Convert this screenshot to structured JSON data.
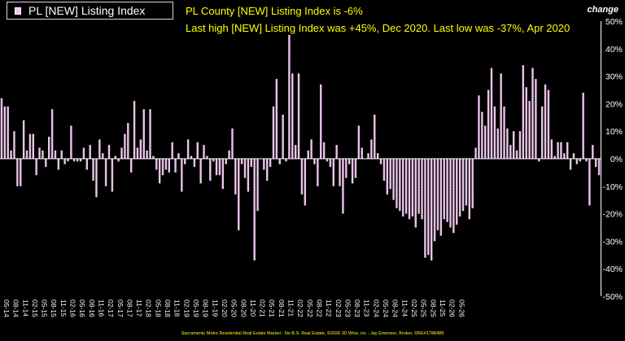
{
  "chart_data": {
    "type": "bar",
    "ylabel": "change",
    "ylim": [
      -50,
      50
    ],
    "ytick_labels": [
      "50%",
      "40%",
      "30%",
      "20%",
      "10%",
      "0%",
      "-10%",
      "-20%",
      "-30%",
      "-40%",
      "-50%"
    ],
    "legend": "PL [NEW] Listing Index",
    "legend_position": "top-left",
    "grid": false,
    "headlines": [
      "PL County [NEW] Listing Index is -6%",
      "Last high [NEW] Listing Index was +45%, Dec 2020. Last low was -37%, Apr 2020"
    ],
    "footer": "Sacramento Metro Residential Real Estate Market - No B.S. Real Estate, ©2026 JD Wise, inc - Jay Emerson, Broker, DRE#1788488",
    "x_tick_labels": [
      "05-14",
      "08-14",
      "11-14",
      "02-15",
      "05-15",
      "08-15",
      "11-15",
      "02-16",
      "05-16",
      "08-16",
      "11-16",
      "02-17",
      "05-17",
      "08-17",
      "11-17",
      "02-18",
      "05-18",
      "08-18",
      "11-18",
      "02-19",
      "05-19",
      "08-19",
      "11-19",
      "02-20",
      "05-20",
      "08-20",
      "11-20",
      "02-21",
      "05-21",
      "08-21",
      "11-21",
      "02-22",
      "05-22",
      "08-22",
      "11-22",
      "02-23",
      "05-23",
      "08-23",
      "11-23",
      "02-24",
      "05-24",
      "08-24",
      "11-24",
      "02-25",
      "05-25",
      "08-25",
      "11-25",
      "02-26",
      "05-26"
    ],
    "start_month": "05-14",
    "values": [
      22,
      19,
      19,
      3,
      10,
      -10,
      -10,
      14,
      3,
      9,
      9,
      -6,
      4,
      3,
      -3,
      8,
      18,
      3,
      -4,
      3,
      -2,
      -1,
      12,
      -1,
      -1,
      -1,
      4,
      -4,
      5,
      -8,
      -14,
      7,
      2,
      -10,
      5,
      -12,
      1,
      -1,
      4,
      9,
      13,
      -5,
      21,
      4,
      7,
      18,
      3,
      18,
      1,
      -4,
      -9,
      -6,
      -4,
      -5,
      6,
      -5,
      2,
      -12,
      -2,
      7,
      1,
      -3,
      6,
      -9,
      5,
      1,
      -8,
      -1,
      -6,
      -6,
      -11,
      -2,
      3,
      11,
      -13,
      -26,
      -2,
      -7,
      -12,
      -3,
      -37,
      -19,
      0,
      -4,
      -8,
      -3,
      19,
      29,
      -2,
      16,
      -1,
      45,
      31,
      5,
      31,
      -13,
      -17,
      3,
      7,
      -2,
      -10,
      27,
      6,
      -1,
      -3,
      -10,
      5,
      -10,
      -20,
      -7,
      -2,
      -9,
      -7,
      12,
      4,
      0,
      2,
      7,
      16,
      2,
      -2,
      -8,
      -13,
      -11,
      -15,
      -18,
      -19,
      -21,
      -20,
      -22,
      -21,
      -25,
      -20,
      -22,
      -36,
      -35,
      -37,
      -30,
      -26,
      -28,
      -22,
      -23,
      -25,
      -27,
      -24,
      -21,
      -19,
      -17,
      -22,
      -18,
      4,
      23,
      17,
      12,
      25,
      33,
      19,
      11,
      31,
      19,
      11,
      5,
      10,
      3,
      10,
      34,
      26,
      21,
      33,
      29,
      -1,
      19,
      27,
      25,
      7,
      1,
      6,
      6,
      2,
      6,
      -4,
      2,
      -2,
      -1,
      24,
      -1,
      -17,
      5,
      -3,
      -6
    ]
  }
}
